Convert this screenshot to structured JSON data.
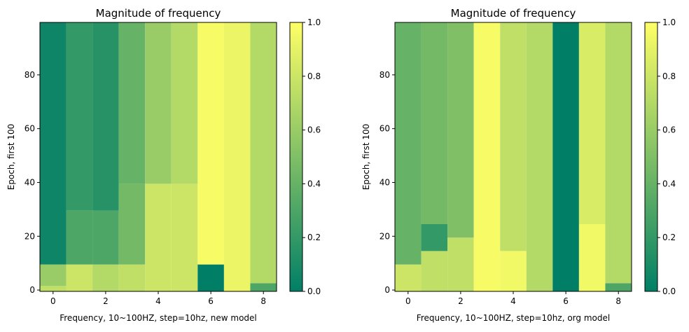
{
  "chart_data": [
    {
      "type": "heatmap",
      "title": "Magnitude of frequency",
      "xlabel": "Frequency, 10~100HZ, step=10hz, new model",
      "ylabel": "Epoch, first 100",
      "x_ticks": [
        0,
        2,
        4,
        6,
        8
      ],
      "y_ticks": [
        0,
        20,
        40,
        60,
        80
      ],
      "xlim": [
        -0.5,
        8.5
      ],
      "ylim": [
        -0.5,
        99.5
      ],
      "colorbar": {
        "min": 0.0,
        "max": 1.0,
        "ticks": [
          "0.0",
          "0.2",
          "0.4",
          "0.6",
          "0.8",
          "1.0"
        ]
      },
      "colormap": [
        "#007f66",
        "#ffff66"
      ],
      "columns": [
        {
          "x": 0,
          "bands": [
            {
              "from": 0,
              "to": 2,
              "value": 0.75
            },
            {
              "from": 2,
              "to": 10,
              "value": 0.6
            },
            {
              "from": 10,
              "to": 100,
              "value": 0.05
            }
          ]
        },
        {
          "x": 1,
          "bands": [
            {
              "from": 0,
              "to": 10,
              "value": 0.8
            },
            {
              "from": 10,
              "to": 30,
              "value": 0.3
            },
            {
              "from": 30,
              "to": 100,
              "value": 0.2
            }
          ]
        },
        {
          "x": 2,
          "bands": [
            {
              "from": 0,
              "to": 10,
              "value": 0.7
            },
            {
              "from": 10,
              "to": 30,
              "value": 0.3
            },
            {
              "from": 30,
              "to": 100,
              "value": 0.15
            }
          ]
        },
        {
          "x": 3,
          "bands": [
            {
              "from": 0,
              "to": 10,
              "value": 0.75
            },
            {
              "from": 10,
              "to": 40,
              "value": 0.45
            },
            {
              "from": 40,
              "to": 100,
              "value": 0.4
            }
          ]
        },
        {
          "x": 4,
          "bands": [
            {
              "from": 0,
              "to": 40,
              "value": 0.8
            },
            {
              "from": 40,
              "to": 100,
              "value": 0.6
            }
          ]
        },
        {
          "x": 5,
          "bands": [
            {
              "from": 0,
              "to": 40,
              "value": 0.8
            },
            {
              "from": 40,
              "to": 100,
              "value": 0.7
            }
          ]
        },
        {
          "x": 6,
          "bands": [
            {
              "from": 0,
              "to": 10,
              "value": 0.0
            },
            {
              "from": 10,
              "to": 100,
              "value": 0.97
            }
          ]
        },
        {
          "x": 7,
          "bands": [
            {
              "from": 0,
              "to": 100,
              "value": 0.92
            }
          ]
        },
        {
          "x": 8,
          "bands": [
            {
              "from": 0,
              "to": 3,
              "value": 0.3
            },
            {
              "from": 3,
              "to": 100,
              "value": 0.7
            }
          ]
        }
      ]
    },
    {
      "type": "heatmap",
      "title": "Magnitude of frequency",
      "xlabel": "Frequency, 10~100HZ, step=10hz, org model",
      "ylabel": "Epoch, first 100",
      "x_ticks": [
        0,
        2,
        4,
        6,
        8
      ],
      "y_ticks": [
        0,
        20,
        40,
        60,
        80
      ],
      "xlim": [
        -0.5,
        8.5
      ],
      "ylim": [
        -0.5,
        99.5
      ],
      "colorbar": {
        "min": 0.0,
        "max": 1.0,
        "ticks": [
          "0.0",
          "0.2",
          "0.4",
          "0.6",
          "0.8",
          "1.0"
        ]
      },
      "colormap": [
        "#007f66",
        "#ffff66"
      ],
      "columns": [
        {
          "x": 0,
          "bands": [
            {
              "from": 0,
              "to": 10,
              "value": 0.8
            },
            {
              "from": 10,
              "to": 100,
              "value": 0.4
            }
          ]
        },
        {
          "x": 1,
          "bands": [
            {
              "from": 0,
              "to": 15,
              "value": 0.75
            },
            {
              "from": 15,
              "to": 25,
              "value": 0.2
            },
            {
              "from": 25,
              "to": 100,
              "value": 0.45
            }
          ]
        },
        {
          "x": 2,
          "bands": [
            {
              "from": 0,
              "to": 20,
              "value": 0.75
            },
            {
              "from": 20,
              "to": 100,
              "value": 0.5
            }
          ]
        },
        {
          "x": 3,
          "bands": [
            {
              "from": 0,
              "to": 100,
              "value": 0.97
            }
          ]
        },
        {
          "x": 4,
          "bands": [
            {
              "from": 0,
              "to": 15,
              "value": 0.95
            },
            {
              "from": 15,
              "to": 100,
              "value": 0.75
            }
          ]
        },
        {
          "x": 5,
          "bands": [
            {
              "from": 0,
              "to": 100,
              "value": 0.7
            }
          ]
        },
        {
          "x": 6,
          "bands": [
            {
              "from": 0,
              "to": 100,
              "value": 0.0
            }
          ]
        },
        {
          "x": 7,
          "bands": [
            {
              "from": 0,
              "to": 25,
              "value": 0.95
            },
            {
              "from": 25,
              "to": 100,
              "value": 0.85
            }
          ]
        },
        {
          "x": 8,
          "bands": [
            {
              "from": 0,
              "to": 3,
              "value": 0.3
            },
            {
              "from": 3,
              "to": 100,
              "value": 0.7
            }
          ]
        }
      ]
    }
  ]
}
